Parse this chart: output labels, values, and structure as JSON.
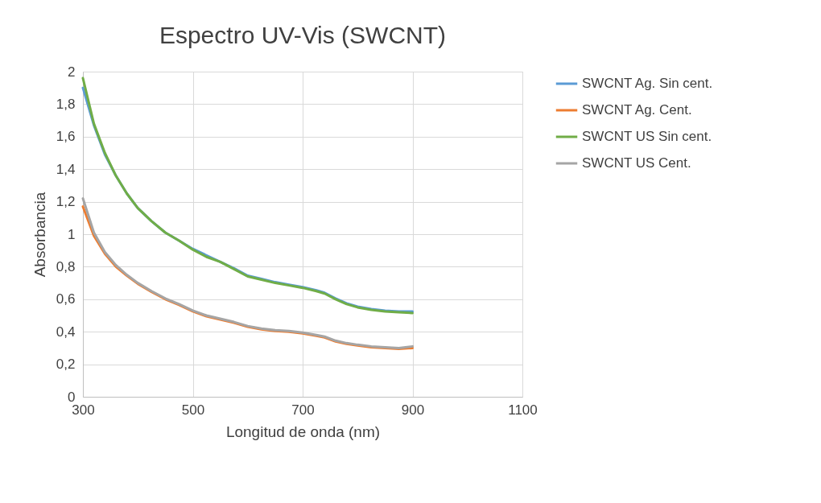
{
  "chart_data": {
    "type": "line",
    "title": "Espectro UV-Vis (SWCNT)",
    "xlabel": "Longitud de onda (nm)",
    "ylabel": "Absorbancia",
    "x": [
      300,
      320,
      340,
      360,
      380,
      400,
      425,
      450,
      475,
      500,
      525,
      550,
      575,
      600,
      625,
      650,
      675,
      700,
      725,
      740,
      760,
      780,
      800,
      825,
      850,
      875,
      900
    ],
    "series": [
      {
        "name": "SWCNT Ag. Sin cent.",
        "color": "#5b9bd5",
        "values": [
          1.9,
          1.67,
          1.49,
          1.36,
          1.25,
          1.16,
          1.08,
          1.01,
          0.96,
          0.91,
          0.87,
          0.83,
          0.79,
          0.745,
          0.725,
          0.705,
          0.69,
          0.675,
          0.655,
          0.64,
          0.605,
          0.575,
          0.555,
          0.54,
          0.53,
          0.525,
          0.525
        ]
      },
      {
        "name": "SWCNT Ag. Cent.",
        "color": "#ed7d31",
        "values": [
          1.17,
          0.99,
          0.88,
          0.8,
          0.745,
          0.695,
          0.645,
          0.6,
          0.565,
          0.525,
          0.495,
          0.475,
          0.455,
          0.43,
          0.415,
          0.405,
          0.4,
          0.39,
          0.375,
          0.365,
          0.34,
          0.325,
          0.315,
          0.305,
          0.3,
          0.295,
          0.3
        ]
      },
      {
        "name": "SWCNT US Sin cent.",
        "color": "#70ad47",
        "values": [
          1.96,
          1.68,
          1.5,
          1.36,
          1.25,
          1.16,
          1.08,
          1.01,
          0.96,
          0.905,
          0.86,
          0.83,
          0.785,
          0.74,
          0.72,
          0.7,
          0.685,
          0.67,
          0.65,
          0.635,
          0.6,
          0.57,
          0.55,
          0.535,
          0.525,
          0.52,
          0.515
        ]
      },
      {
        "name": "SWCNT US Cent.",
        "color": "#a5a5a5",
        "values": [
          1.22,
          1.01,
          0.89,
          0.81,
          0.75,
          0.7,
          0.65,
          0.605,
          0.57,
          0.53,
          0.5,
          0.48,
          0.46,
          0.435,
          0.42,
          0.41,
          0.405,
          0.395,
          0.38,
          0.37,
          0.345,
          0.33,
          0.32,
          0.31,
          0.305,
          0.3,
          0.31
        ]
      }
    ],
    "xlim": [
      300,
      1100
    ],
    "xticks": [
      300,
      500,
      700,
      900,
      1100
    ],
    "ylim": [
      0,
      2
    ],
    "yticks": [
      0,
      {
        "value": 0.2,
        "label": "0,2"
      },
      {
        "value": 0.4,
        "label": "0,4"
      },
      {
        "value": 0.6,
        "label": "0,6"
      },
      {
        "value": 0.8,
        "label": "0,8"
      },
      1,
      {
        "value": 1.2,
        "label": "1,2"
      },
      {
        "value": 1.4,
        "label": "1,4"
      },
      {
        "value": 1.6,
        "label": "1,6"
      },
      {
        "value": 1.8,
        "label": "1,8"
      },
      2
    ],
    "grid": true,
    "legend": "right",
    "line_style": "solid",
    "marker": "none"
  }
}
